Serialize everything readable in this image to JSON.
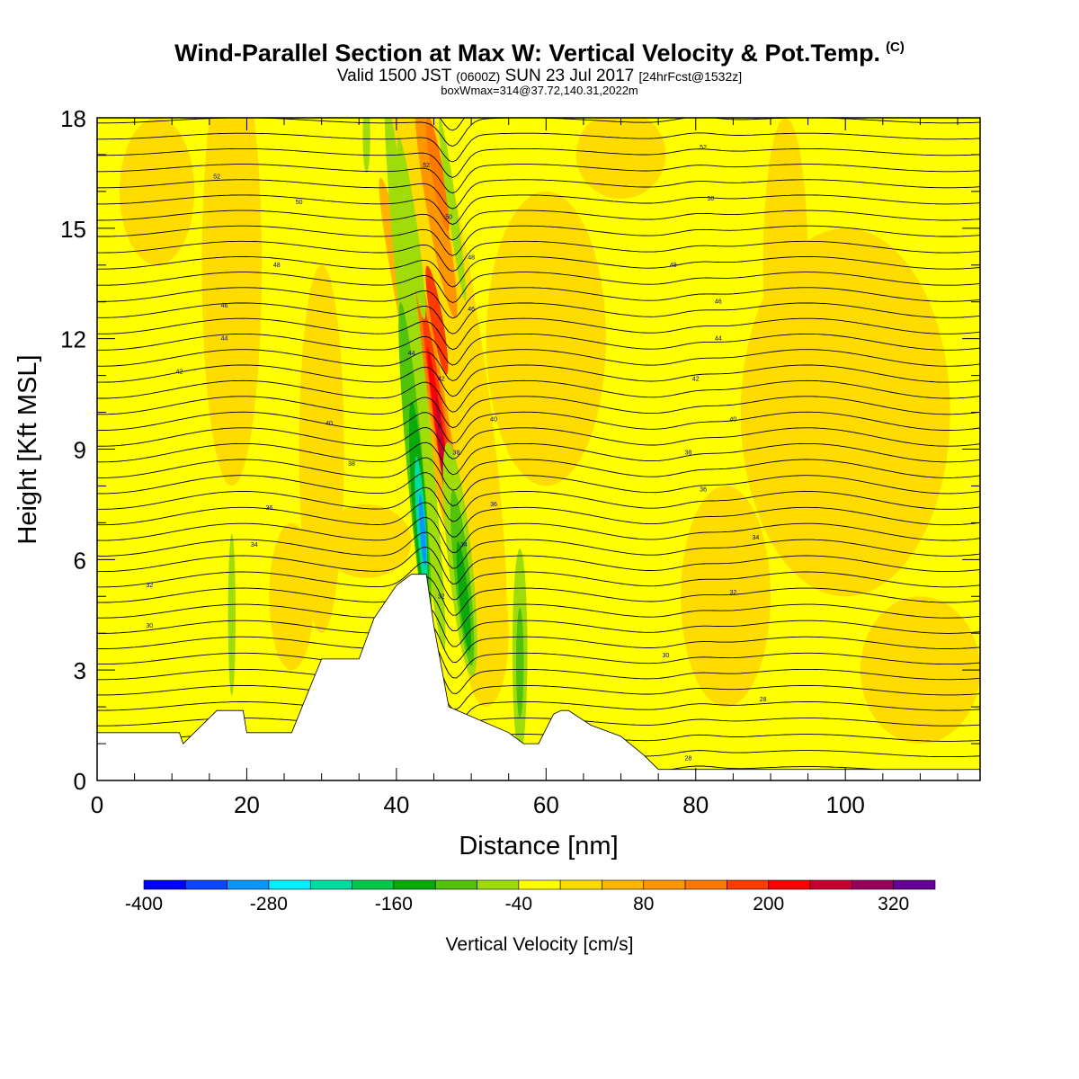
{
  "title": {
    "main": "Wind-Parallel Section at Max W: Vertical Velocity & Pot.Temp.",
    "main_sup": "(C)",
    "valid_a": "Valid 1500 JST",
    "valid_b": "(0600Z)",
    "valid_c": "SUN 23 Jul 2017",
    "valid_d": "[24hrFcst@1532z]",
    "box": "boxWmax=314@37.72,140.31,2022m"
  },
  "chart_data": {
    "type": "heatmap",
    "xlabel": "Distance [nm]",
    "ylabel": "Height [Kft MSL]",
    "xlim": [
      0,
      118
    ],
    "ylim": [
      0,
      18
    ],
    "x_ticks": [
      0,
      20,
      40,
      60,
      80,
      100
    ],
    "y_ticks": [
      0,
      3,
      6,
      9,
      12,
      15,
      18
    ],
    "colorbar": {
      "label": "Vertical Velocity [cm/s]",
      "tick_labels": [
        -400,
        -280,
        -160,
        -40,
        80,
        200,
        320
      ],
      "colors": [
        "#0000ff",
        "#0a46ff",
        "#0a96ff",
        "#00f0ff",
        "#00dca0",
        "#00c84b",
        "#0aaa0a",
        "#50c30a",
        "#a0dc0a",
        "#ffff00",
        "#ffdc00",
        "#ffb400",
        "#ff9600",
        "#ff7800",
        "#ff3c00",
        "#ff0000",
        "#c80032",
        "#96005a",
        "#640096"
      ]
    },
    "terrain_kft": {
      "x": [
        0,
        11,
        11.5,
        16,
        19.5,
        20,
        26,
        28,
        29,
        30,
        35,
        37,
        38,
        40,
        42,
        44,
        45,
        47,
        55,
        57,
        59,
        61,
        62,
        63,
        66,
        70,
        73,
        75,
        80,
        118
      ],
      "y": [
        1.3,
        1.3,
        1.0,
        1.9,
        1.9,
        1.3,
        1.3,
        2.3,
        2.8,
        3.3,
        3.3,
        4.4,
        4.7,
        5.3,
        5.6,
        5.6,
        4.2,
        2.0,
        1.3,
        1.0,
        1.0,
        1.8,
        1.9,
        1.9,
        1.5,
        1.2,
        0.7,
        0.3,
        0.3,
        0.3
      ]
    },
    "theta_labels": [
      {
        "x": 16,
        "y": 16.4,
        "text": "52"
      },
      {
        "x": 27,
        "y": 15.7,
        "text": "50"
      },
      {
        "x": 24,
        "y": 14.0,
        "text": "48"
      },
      {
        "x": 17,
        "y": 12.9,
        "text": "46"
      },
      {
        "x": 17,
        "y": 12.0,
        "text": "44"
      },
      {
        "x": 11,
        "y": 11.1,
        "text": "42"
      },
      {
        "x": 31,
        "y": 9.7,
        "text": "40"
      },
      {
        "x": 34,
        "y": 8.6,
        "text": "38"
      },
      {
        "x": 23,
        "y": 7.4,
        "text": "36"
      },
      {
        "x": 21,
        "y": 6.4,
        "text": "34"
      },
      {
        "x": 7,
        "y": 5.3,
        "text": "32"
      },
      {
        "x": 7,
        "y": 4.2,
        "text": "30"
      },
      {
        "x": 44,
        "y": 16.7,
        "text": "52"
      },
      {
        "x": 47,
        "y": 15.3,
        "text": "50"
      },
      {
        "x": 50,
        "y": 14.2,
        "text": "48"
      },
      {
        "x": 50,
        "y": 12.8,
        "text": "46"
      },
      {
        "x": 42,
        "y": 11.6,
        "text": "44"
      },
      {
        "x": 46,
        "y": 10.9,
        "text": "42"
      },
      {
        "x": 53,
        "y": 9.8,
        "text": "40"
      },
      {
        "x": 48,
        "y": 8.9,
        "text": "38"
      },
      {
        "x": 53,
        "y": 7.5,
        "text": "36"
      },
      {
        "x": 49,
        "y": 6.4,
        "text": "34"
      },
      {
        "x": 46,
        "y": 5.0,
        "text": "32"
      },
      {
        "x": 81,
        "y": 17.2,
        "text": "52"
      },
      {
        "x": 82,
        "y": 15.8,
        "text": "50"
      },
      {
        "x": 77,
        "y": 14.0,
        "text": "48"
      },
      {
        "x": 83,
        "y": 13.0,
        "text": "46"
      },
      {
        "x": 83,
        "y": 12.0,
        "text": "44"
      },
      {
        "x": 80,
        "y": 10.9,
        "text": "42"
      },
      {
        "x": 85,
        "y": 9.8,
        "text": "40"
      },
      {
        "x": 79,
        "y": 8.9,
        "text": "38"
      },
      {
        "x": 81,
        "y": 7.9,
        "text": "36"
      },
      {
        "x": 88,
        "y": 6.6,
        "text": "34"
      },
      {
        "x": 85,
        "y": 5.1,
        "text": "32"
      },
      {
        "x": 76,
        "y": 3.4,
        "text": "30"
      },
      {
        "x": 89,
        "y": 2.2,
        "text": "28"
      },
      {
        "x": 79,
        "y": 0.6,
        "text": "28"
      }
    ]
  }
}
